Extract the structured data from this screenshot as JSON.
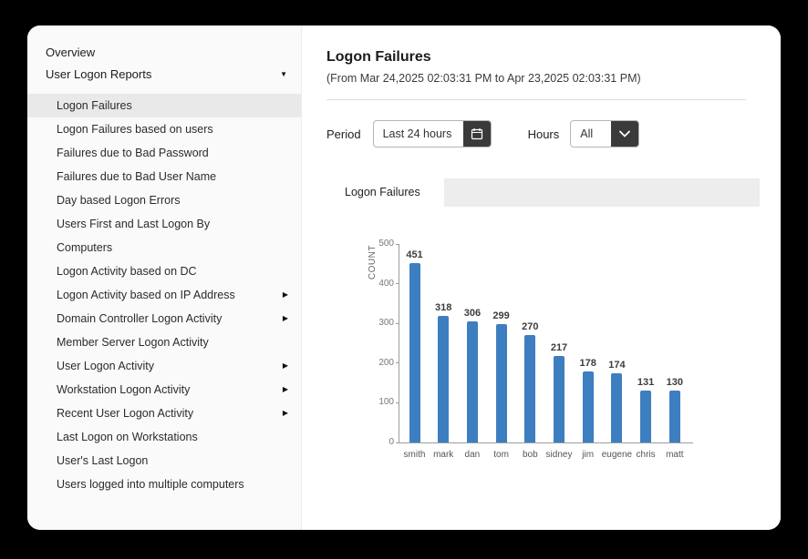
{
  "sidebar": {
    "overview_label": "Overview",
    "section": {
      "label": "User Logon Reports",
      "expanded": true
    },
    "items": [
      {
        "label": "Logon Failures",
        "selected": true,
        "has_submenu": false
      },
      {
        "label": "Logon Failures based on users",
        "selected": false,
        "has_submenu": false
      },
      {
        "label": "Failures due to Bad Password",
        "selected": false,
        "has_submenu": false
      },
      {
        "label": "Failures due to Bad User Name",
        "selected": false,
        "has_submenu": false
      },
      {
        "label": "Day based Logon Errors",
        "selected": false,
        "has_submenu": false
      },
      {
        "label": "Users First and Last Logon By Computers",
        "selected": false,
        "has_submenu": false
      },
      {
        "label": "Logon Activity based on DC",
        "selected": false,
        "has_submenu": false
      },
      {
        "label": "Logon Activity based on IP Address",
        "selected": false,
        "has_submenu": true
      },
      {
        "label": "Domain Controller Logon Activity",
        "selected": false,
        "has_submenu": true
      },
      {
        "label": "Member Server Logon Activity",
        "selected": false,
        "has_submenu": false
      },
      {
        "label": "User Logon Activity",
        "selected": false,
        "has_submenu": true
      },
      {
        "label": "Workstation Logon Activity",
        "selected": false,
        "has_submenu": true
      },
      {
        "label": "Recent User Logon Activity",
        "selected": false,
        "has_submenu": true
      },
      {
        "label": "Last Logon on Workstations",
        "selected": false,
        "has_submenu": false
      },
      {
        "label": "User's Last Logon",
        "selected": false,
        "has_submenu": false
      },
      {
        "label": "Users logged into multiple computers",
        "selected": false,
        "has_submenu": false
      }
    ]
  },
  "header": {
    "title": "Logon Failures",
    "subtitle": "(From Mar 24,2025 02:03:31 PM to Apr 23,2025 02:03:31 PM)"
  },
  "filters": {
    "period": {
      "label": "Period",
      "value": "Last 24 hours"
    },
    "hours": {
      "label": "Hours",
      "value": "All"
    }
  },
  "tabs": [
    {
      "label": "Logon Failures",
      "active": true
    }
  ],
  "chart_data": {
    "type": "bar",
    "title": "Logon Failures",
    "categories": [
      "smith",
      "mark",
      "dan",
      "tom",
      "bob",
      "sidney",
      "jim",
      "eugene",
      "chris",
      "matt"
    ],
    "values": [
      451,
      318,
      306,
      299,
      270,
      217,
      178,
      174,
      131,
      130
    ],
    "xlabel": "",
    "ylabel": "COUNT",
    "ylim": [
      0,
      500
    ],
    "yticks": [
      0,
      100,
      200,
      300,
      400,
      500
    ],
    "grid": false,
    "legend": false,
    "bar_color": "#3d7ec1"
  },
  "colors": {
    "bar": "#3d7ec1",
    "dark_button": "#3a3a3a",
    "tab_strip": "#ededed",
    "sidebar_selected": "#e9e9e9"
  }
}
